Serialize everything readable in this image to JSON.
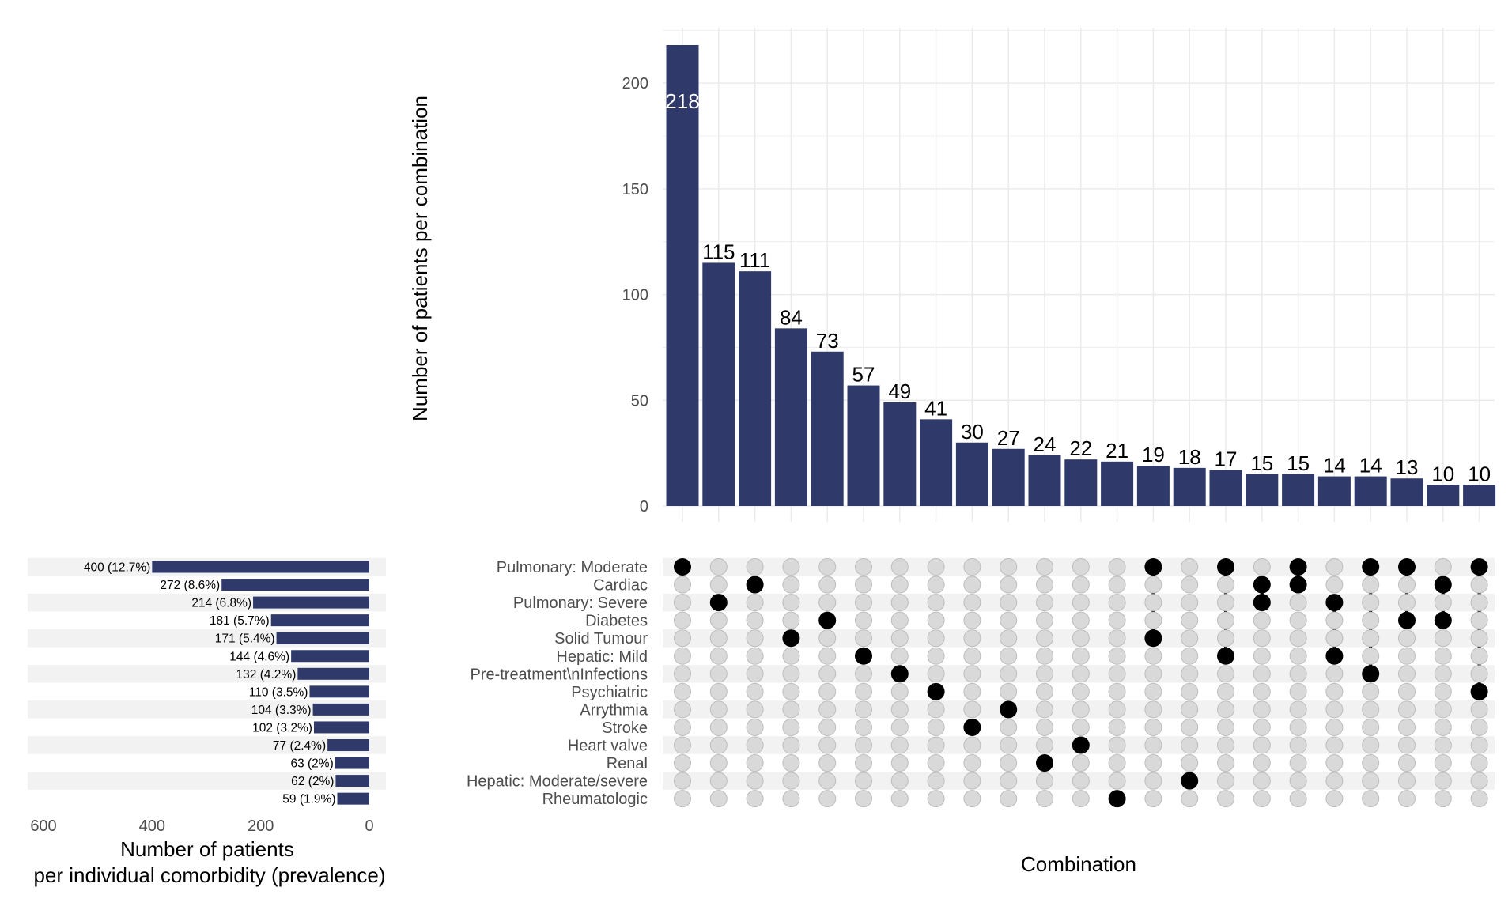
{
  "chart_data": {
    "type": "upset",
    "colors": {
      "bar": "#2f3a6b",
      "dot_active": "#000000",
      "dot_inactive": "#d9d9d9",
      "dot_inactive_stroke": "#bdbdbd",
      "grid": "#ebebeb",
      "stripe": "#f2f2f2",
      "text": "#000000",
      "tick_text": "#4d4d4d"
    },
    "sets": [
      "Pulmonary: Moderate",
      "Cardiac",
      "Pulmonary: Severe",
      "Diabetes",
      "Solid Tumour",
      "Hepatic: Mild",
      "Pre-treatment\\nInfections",
      "Psychiatric",
      "Arrythmia",
      "Stroke",
      "Heart valve",
      "Renal",
      "Hepatic: Moderate/severe",
      "Rheumatologic"
    ],
    "set_sizes": [
      400,
      272,
      214,
      181,
      171,
      144,
      132,
      110,
      104,
      102,
      77,
      63,
      62,
      59
    ],
    "set_size_labels": [
      "400 (12.7%)",
      "272 (8.6%)",
      "214 (6.8%)",
      "181 (5.7%)",
      "171 (5.4%)",
      "144 (4.6%)",
      "132 (4.2%)",
      "110 (3.5%)",
      "104 (3.3%)",
      "102 (3.2%)",
      "77 (2.4%)",
      "63 (2%)",
      "62 (2%)",
      "59 (1.9%)"
    ],
    "set_size_axis": {
      "ticks": [
        600,
        400,
        200,
        0
      ],
      "xlim": [
        600,
        0
      ],
      "xlabel": [
        "Number of patients",
        "per individual comorbidity (prevalence)"
      ]
    },
    "intersections": [
      {
        "value": 218,
        "members": [
          0
        ]
      },
      {
        "value": 115,
        "members": [
          2
        ]
      },
      {
        "value": 111,
        "members": [
          1
        ]
      },
      {
        "value": 84,
        "members": [
          4
        ]
      },
      {
        "value": 73,
        "members": [
          3
        ]
      },
      {
        "value": 57,
        "members": [
          5
        ]
      },
      {
        "value": 49,
        "members": [
          6
        ]
      },
      {
        "value": 41,
        "members": [
          7
        ]
      },
      {
        "value": 30,
        "members": [
          9
        ]
      },
      {
        "value": 27,
        "members": [
          8
        ]
      },
      {
        "value": 24,
        "members": [
          11
        ]
      },
      {
        "value": 22,
        "members": [
          10
        ]
      },
      {
        "value": 21,
        "members": [
          13
        ]
      },
      {
        "value": 19,
        "members": [
          0,
          4
        ]
      },
      {
        "value": 18,
        "members": [
          12
        ]
      },
      {
        "value": 17,
        "members": [
          0,
          5
        ]
      },
      {
        "value": 15,
        "members": [
          1,
          2
        ]
      },
      {
        "value": 15,
        "members": [
          0,
          1
        ]
      },
      {
        "value": 14,
        "members": [
          2,
          5
        ]
      },
      {
        "value": 14,
        "members": [
          0,
          6
        ]
      },
      {
        "value": 13,
        "members": [
          0,
          3
        ]
      },
      {
        "value": 10,
        "members": [
          1,
          3
        ]
      },
      {
        "value": 10,
        "members": [
          0,
          7
        ]
      }
    ],
    "intersection_axis": {
      "ylabel": "Number of patients per combination",
      "yticks": [
        0,
        50,
        100,
        150,
        200
      ],
      "ylim": [
        0,
        230
      ]
    },
    "xlabel": "Combination",
    "grid": true
  }
}
